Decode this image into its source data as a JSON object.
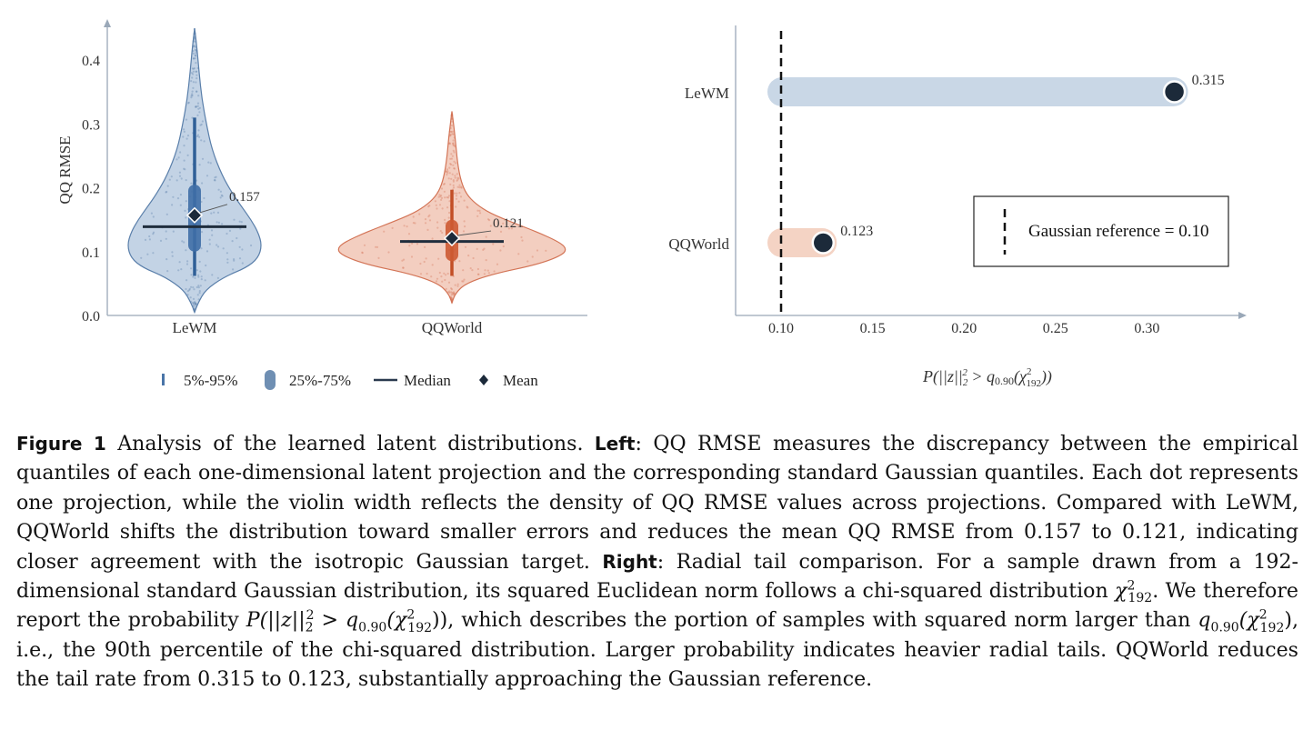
{
  "chart_data": [
    {
      "type": "violin",
      "ylabel": "QQ RMSE",
      "ylim": [
        0.0,
        0.45
      ],
      "yticks": [
        "0.0",
        "0.1",
        "0.2",
        "0.3",
        "0.4"
      ],
      "categories": [
        "LeWM",
        "QQWorld"
      ],
      "colors": {
        "LeWM": "#7095c0",
        "QQWorld": "#e38a68"
      },
      "series": [
        {
          "name": "LeWM",
          "p5": 0.062,
          "p25": 0.1,
          "median": 0.139,
          "p75": 0.205,
          "p95": 0.31,
          "mean": 0.157,
          "mean_label": "0.157",
          "max": 0.45,
          "min": 0.005
        },
        {
          "name": "QQWorld",
          "p5": 0.062,
          "p25": 0.085,
          "median": 0.116,
          "p75": 0.15,
          "p95": 0.197,
          "mean": 0.121,
          "mean_label": "0.121",
          "max": 0.32,
          "min": 0.02
        }
      ],
      "legend": [
        "5%-95%",
        "25%-75%",
        "Median",
        "Mean"
      ]
    },
    {
      "type": "lollipop",
      "xlabel_parts": {
        "p": "P(",
        "norm": "||z||",
        "sub2": "2",
        "sup2": "2",
        "gt": " > ",
        "q": "q",
        "qsub": "0.90",
        "chi": "(χ",
        "chisup": "2",
        "chisub": "192",
        "close": "))"
      },
      "xlim": [
        0.075,
        0.35
      ],
      "xticks": [
        "0.10",
        "0.15",
        "0.20",
        "0.25",
        "0.30"
      ],
      "categories": [
        "LeWM",
        "QQWorld"
      ],
      "values": [
        0.315,
        0.123
      ],
      "value_labels": [
        "0.315",
        "0.123"
      ],
      "reference": 0.1,
      "legend": "Gaussian reference = 0.10"
    }
  ],
  "caption": {
    "label": "Figure 1",
    "t1": " Analysis of the learned latent distributions. ",
    "left": "Left",
    "t2": ": QQ RMSE measures the discrepancy between the empirical quantiles of each one-dimensional latent projection and the corresponding standard Gaussian quantiles. Each dot represents one projection, while the violin width reflects the density of QQ RMSE values across projections. Compared with LeWM, QQWorld shifts the distribution toward smaller errors and reduces the mean QQ RMSE from 0.157 to 0.121, indicating closer agreement with the isotropic Gaussian target. ",
    "right": "Right",
    "t3": ": Radial tail comparison. For a sample drawn from a 192-dimensional standard Gaussian distribution, its squared Euclidean norm follows a chi-squared distribution ",
    "chi": "χ",
    "chi_sup": "2",
    "chi_sub": "192",
    "t4": ". We therefore report the probability ",
    "prob": "P(||z||",
    "prob_sub": "2",
    "prob_sup": "2",
    "prob_rest": " > q",
    "q_sub": "0.90",
    "chi2": "(χ",
    "chi2_sup": "2",
    "chi2_sub": "192",
    "prob_close": "))",
    "t5": ", which describes the portion of samples with squared norm larger than ",
    "q2": "q",
    "q2_sub": "0.90",
    "chi3": "(χ",
    "chi3_sup": "2",
    "chi3_sub": "192",
    "q2_close": ")",
    "t6": ", i.e., the 90th percentile of the chi-squared distribution. Larger probability indicates heavier radial tails.  QQWorld reduces the tail rate from 0.315 to 0.123, substantially approaching the Gaussian reference."
  }
}
